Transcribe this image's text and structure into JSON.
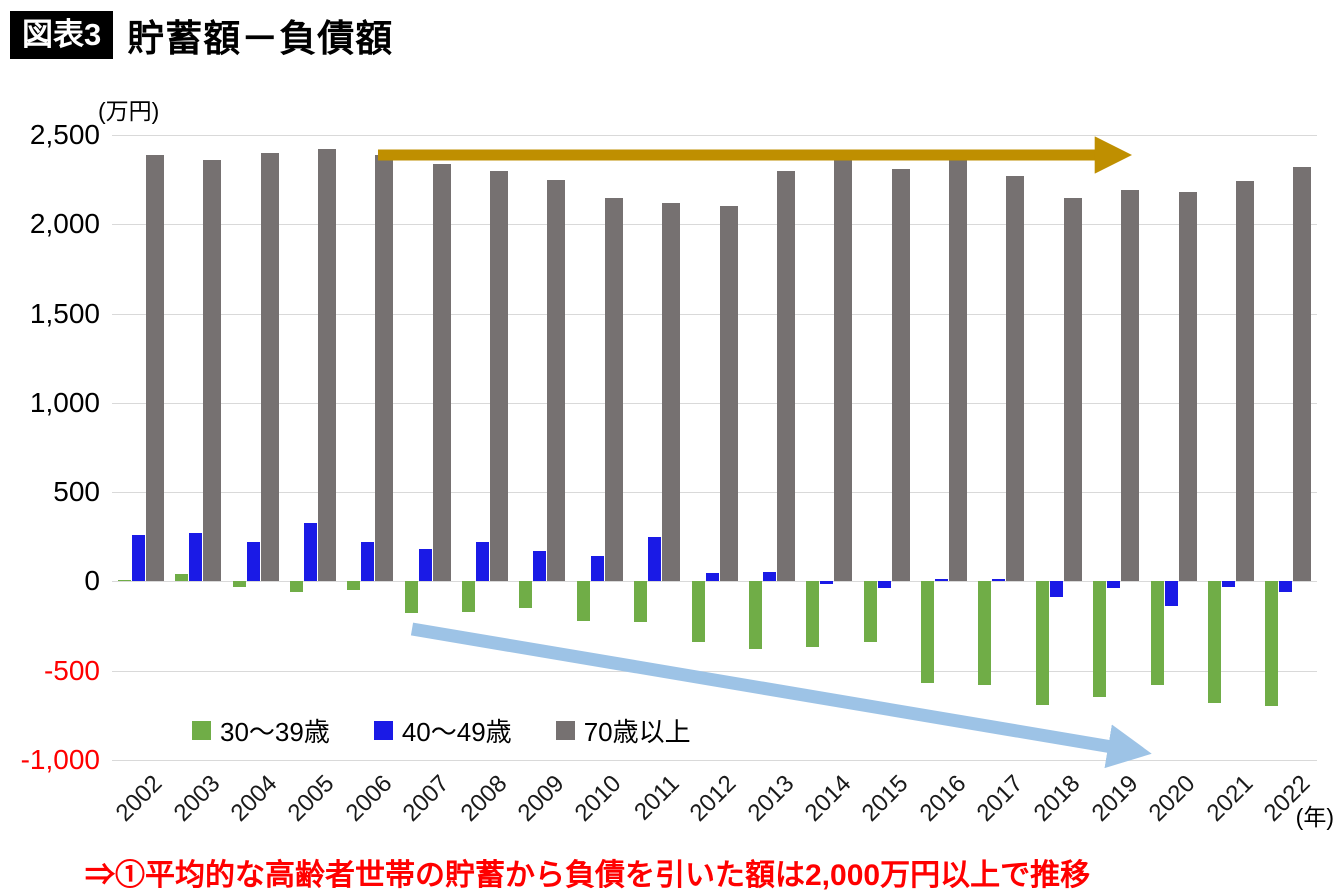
{
  "header": {
    "badge": "図表3",
    "title": "貯蓄額－負債額"
  },
  "chart_data": {
    "type": "bar",
    "title": "貯蓄額－負債額",
    "unit_label": "(万円)",
    "x_axis_suffix": "(年)",
    "categories": [
      "2002",
      "2003",
      "2004",
      "2005",
      "2006",
      "2007",
      "2008",
      "2009",
      "2010",
      "2011",
      "2012",
      "2013",
      "2014",
      "2015",
      "2016",
      "2017",
      "2018",
      "2019",
      "2020",
      "2021",
      "2022"
    ],
    "series": [
      {
        "key": "30-39",
        "name": "30〜39歳",
        "color": "#70AD47",
        "values": [
          10,
          40,
          -30,
          -60,
          -50,
          -180,
          -170,
          -150,
          -220,
          -230,
          -340,
          -380,
          -370,
          -340,
          -570,
          -580,
          -690,
          -650,
          -580,
          -680,
          -700
        ]
      },
      {
        "key": "40-49",
        "name": "40〜49歳",
        "color": "#1A1AE6",
        "values": [
          260,
          270,
          220,
          330,
          220,
          180,
          220,
          170,
          140,
          250,
          50,
          55,
          -15,
          -35,
          15,
          15,
          -90,
          -40,
          -140,
          -30,
          -60
        ]
      },
      {
        "key": "70plus",
        "name": "70歳以上",
        "color": "#767171",
        "values": [
          2390,
          2360,
          2400,
          2420,
          2390,
          2340,
          2300,
          2250,
          2150,
          2120,
          2100,
          2300,
          2400,
          2310,
          2360,
          2270,
          2150,
          2190,
          2180,
          2240,
          2320
        ]
      }
    ],
    "ylim": [
      -1000,
      2500
    ],
    "yticks": [
      2500,
      2000,
      1500,
      1000,
      500,
      0,
      -500,
      -1000
    ],
    "tick_color": "#000000",
    "negative_tick_color": "#FF0000",
    "grid": true,
    "legend_position": "bottom-left-inside",
    "annotations": [
      {
        "name": "upper-trend-arrow",
        "direction": "right",
        "color": "#BF8F00"
      },
      {
        "name": "declining-trend-arrow",
        "direction": "down-right",
        "color": "#9DC3E6"
      }
    ]
  },
  "footer": {
    "note": "⇒①平均的な高齢者世帯の貯蓄から負債を引いた額は2,000万円以上で推移",
    "color": "#FF0000"
  }
}
